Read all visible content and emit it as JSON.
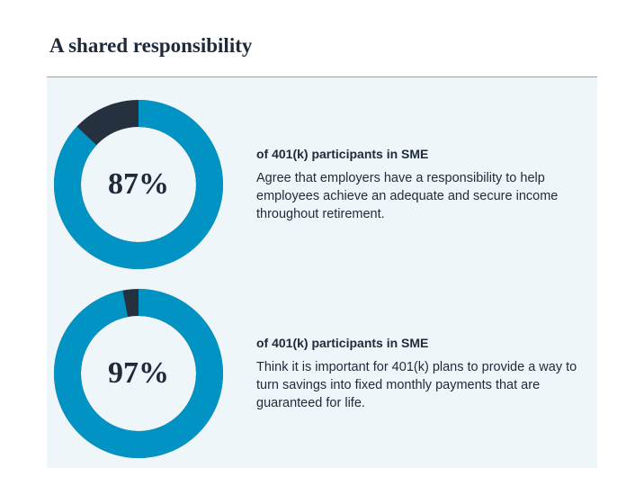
{
  "title": "A shared responsibility",
  "chart_data": [
    {
      "type": "donut",
      "values": [
        87
      ],
      "value_labels": [
        "87%"
      ],
      "ylim": [
        0,
        100
      ],
      "color": "#0093c4",
      "track_color": "#25313f",
      "subtitle": "of 401(k) participants in SME",
      "description": "Agree that employers have a responsibility to help employees achieve an adequate and secure income throughout retirement."
    },
    {
      "type": "donut",
      "values": [
        97
      ],
      "value_labels": [
        "97%"
      ],
      "ylim": [
        0,
        100
      ],
      "color": "#0093c4",
      "track_color": "#25313f",
      "subtitle": "of 401(k) participants in SME",
      "description": "Think it is important for 401(k) plans to provide a way to turn savings into fixed monthly payments that are guaranteed for life."
    }
  ]
}
